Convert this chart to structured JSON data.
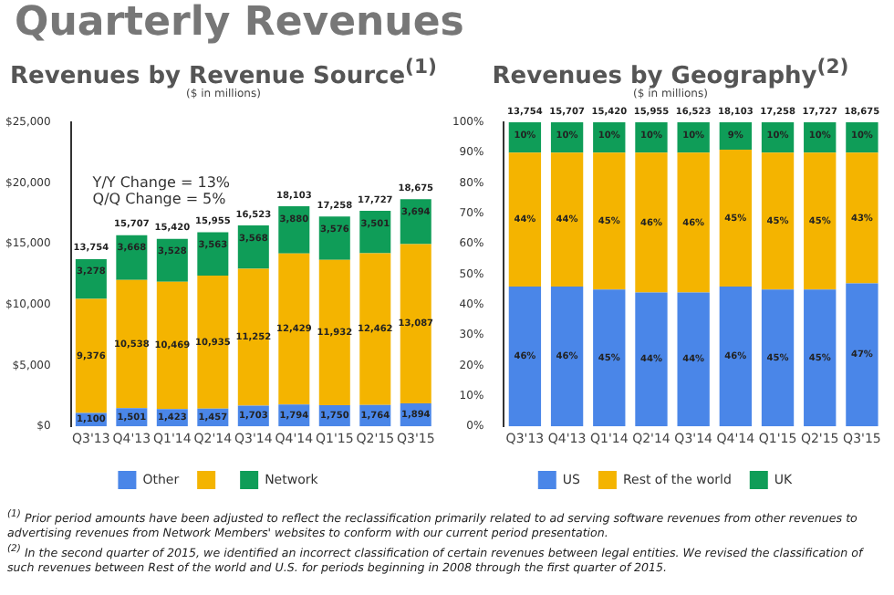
{
  "chart_data": [
    {
      "type": "other",
      "title": "Quarterly Revenues"
    },
    {
      "type": "bar",
      "title": "Revenues by Revenue Source$^{(1)}$",
      "subtitle": "($ in millions)",
      "categories": [
        "Q3'13",
        "Q4'13",
        "Q1'14",
        "Q2'14",
        "Q3'14",
        "Q4'14",
        "Q1'15",
        "Q2'15",
        "Q3'15"
      ],
      "stacked": true,
      "series": [
        {
          "name": "Other",
          "color": "#4a86e8",
          "values": [
            1100,
            1501,
            1423,
            1457,
            1703,
            1794,
            1750,
            1764,
            1894
          ],
          "value_labels": [
            "1,100",
            "1,501",
            "1,423",
            "1,457",
            "1,703",
            "1,794",
            "1,750",
            "1,764",
            "1,894"
          ]
        },
        {
          "color": "#f4b400",
          "values": [
            9376,
            10538,
            10469,
            10935,
            11252,
            12429,
            11932,
            12462,
            13087
          ],
          "value_labels": [
            "9,376",
            "10,538",
            "10,469",
            "10,935",
            "11,252",
            "12,429",
            "11,932",
            "12,462",
            "13,087"
          ]
        },
        {
          "name": "Network",
          "color": "#0f9d58",
          "values": [
            3278,
            3668,
            3528,
            3563,
            3568,
            3880,
            3576,
            3501,
            3694
          ],
          "value_labels": [
            "3,278",
            "3,668",
            "3,528",
            "3,563",
            "3,568",
            "3,880",
            "3,576",
            "3,501",
            "3,694"
          ]
        }
      ],
      "totals": [
        "13,754",
        "15,707",
        "15,420",
        "15,955",
        "16,523",
        "18,103",
        "17,258",
        "17,727",
        "18,675"
      ],
      "ylim": [
        0,
        25000
      ],
      "yticks": [
        {
          "value": 0,
          "label": "$0"
        },
        {
          "value": 5000,
          "label": "$5,000"
        },
        {
          "value": 10000,
          "label": "$10,000"
        },
        {
          "value": 15000,
          "label": "$15,000"
        },
        {
          "value": 20000,
          "label": "$20,000"
        },
        {
          "value": 25000,
          "label": "$25,000"
        }
      ],
      "annotations": [
        "Y/Y Change = 13%",
        "Q/Q Change = 5%"
      ],
      "grid": false,
      "legend": "bottom"
    },
    {
      "type": "bar",
      "title": "Revenues by Geography$^{(2)}$",
      "subtitle": "($ in millions)",
      "categories": [
        "Q3'13",
        "Q4'13",
        "Q1'14",
        "Q2'14",
        "Q3'14",
        "Q4'14",
        "Q1'15",
        "Q2'15",
        "Q3'15"
      ],
      "stacked": true,
      "series": [
        {
          "name": "US",
          "color": "#4a86e8",
          "values": [
            46,
            46,
            45,
            44,
            44,
            46,
            45,
            45,
            47
          ],
          "value_labels": [
            "46%",
            "46%",
            "45%",
            "44%",
            "44%",
            "46%",
            "45%",
            "45%",
            "47%"
          ]
        },
        {
          "name": "Rest of the world",
          "color": "#f4b400",
          "values": [
            44,
            44,
            45,
            46,
            46,
            45,
            45,
            45,
            43
          ],
          "value_labels": [
            "44%",
            "44%",
            "45%",
            "46%",
            "46%",
            "45%",
            "45%",
            "45%",
            "43%"
          ]
        },
        {
          "name": "UK",
          "color": "#0f9d58",
          "values": [
            10,
            10,
            10,
            10,
            10,
            9,
            10,
            10,
            10
          ],
          "value_labels": [
            "10%",
            "10%",
            "10%",
            "10%",
            "10%",
            "9%",
            "10%",
            "10%",
            "10%"
          ]
        }
      ],
      "annotations": [
        {
          "text": "13,754",
          "x": "Q3'13",
          "y": 100
        },
        {
          "text": "15,707",
          "x": "Q4'13",
          "y": 100
        },
        {
          "text": "15,420",
          "x": "Q1'14",
          "y": 100
        },
        {
          "text": "15,955",
          "x": "Q2'14",
          "y": 100
        },
        {
          "text": "16,523",
          "x": "Q3'14",
          "y": 100
        },
        {
          "text": "18,103",
          "x": "Q4'14",
          "y": 100
        },
        {
          "text": "17,258",
          "x": "Q1'15",
          "y": 100
        },
        {
          "text": "17,727",
          "x": "Q2'15",
          "y": 100
        },
        {
          "text": "18,675",
          "x": "Q3'15",
          "y": 100
        }
      ],
      "ylim": [
        0,
        100
      ],
      "yticks": [
        {
          "value": 0,
          "label": "0%"
        },
        {
          "value": 10,
          "label": "10%"
        },
        {
          "value": 20,
          "label": "20%"
        },
        {
          "value": 30,
          "label": "30%"
        },
        {
          "value": 40,
          "label": "40%"
        },
        {
          "value": 50,
          "label": "50%"
        },
        {
          "value": 60,
          "label": "60%"
        },
        {
          "value": 70,
          "label": "70%"
        },
        {
          "value": 80,
          "label": "80%"
        },
        {
          "value": 90,
          "label": "90%"
        },
        {
          "value": 100,
          "label": "100%"
        }
      ],
      "grid": false,
      "legend": "bottom"
    },
    {
      "type": "other",
      "annotations": [
        "$^{(1)}$ Prior period amounts have been adjusted to reflect the reclassification primarily related to ad serving software revenues from other revenues to advertising revenues from Network Members' websites to conform with our current period presentation.",
        "$^{(2)}$ In the second quarter of 2015, we identified an incorrect classification of certain revenues between legal entities. We revised the classification of such revenues between Rest of the world and U.S. for periods beginning in 2008 through the first quarter of 2015."
      ]
    }
  ]
}
